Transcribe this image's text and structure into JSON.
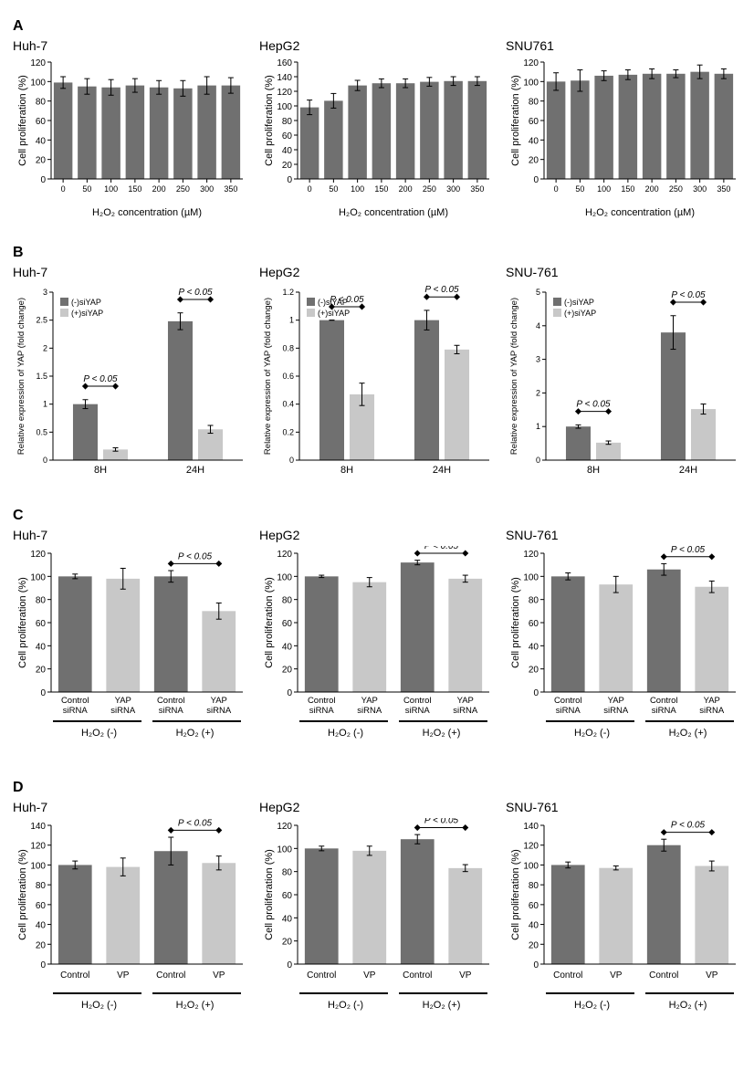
{
  "global": {
    "bar_color_dark": "#707070",
    "bar_color_light": "#c8c8c8",
    "axis_color": "#000000",
    "err_color": "#000000",
    "font_family": "Arial",
    "p_label": "P < 0.05",
    "cell_lines": [
      "Huh-7",
      "HepG2",
      "SNU-761"
    ]
  },
  "panelA": {
    "label": "A",
    "ylabel": "Cell proliferation (%)",
    "xlabel_html": "H₂O₂ concentration (µM)",
    "categories": [
      "0",
      "50",
      "100",
      "150",
      "200",
      "250",
      "300",
      "350"
    ],
    "charts": [
      {
        "title": "Huh-7",
        "ymax": 120,
        "ytick": 20,
        "values": [
          99,
          95,
          94,
          96,
          94,
          93,
          96,
          96
        ],
        "errors": [
          6,
          8,
          8,
          7,
          7,
          8,
          9,
          8
        ]
      },
      {
        "title": "HepG2",
        "ymax": 160,
        "ytick": 20,
        "values": [
          98,
          107,
          128,
          131,
          131,
          133,
          134,
          134
        ],
        "errors": [
          10,
          10,
          7,
          6,
          6,
          6,
          6,
          6
        ]
      },
      {
        "title": "SNU761",
        "ymax": 120,
        "ytick": 20,
        "values": [
          100,
          101,
          106,
          107,
          108,
          108,
          110,
          108
        ],
        "errors": [
          9,
          11,
          5,
          5,
          5,
          4,
          7,
          5
        ]
      }
    ]
  },
  "panelB": {
    "label": "B",
    "ylabel": "Relative expression of YAP (fold change)",
    "categories": [
      "8H",
      "24H"
    ],
    "legend": [
      "(-)siYAP",
      "(+)siYAP"
    ],
    "charts": [
      {
        "title": "Huh-7",
        "ymax": 3.0,
        "ytick": 0.5,
        "dark": [
          1.0,
          2.48
        ],
        "light": [
          0.19,
          0.55
        ],
        "derr": [
          0.08,
          0.15
        ],
        "lerr": [
          0.03,
          0.07
        ],
        "p": [
          1,
          1
        ]
      },
      {
        "title": "HepG2",
        "ymax": 1.2,
        "ytick": 0.2,
        "dark": [
          1.0,
          1.0
        ],
        "light": [
          0.47,
          0.79
        ],
        "derr": [
          0.0,
          0.07
        ],
        "lerr": [
          0.08,
          0.03
        ],
        "p": [
          1,
          1
        ]
      },
      {
        "title": "SNU-761",
        "ymax": 5.0,
        "ytick": 1.0,
        "dark": [
          1.0,
          3.8
        ],
        "light": [
          0.52,
          1.52
        ],
        "derr": [
          0.05,
          0.5
        ],
        "lerr": [
          0.05,
          0.15
        ],
        "p": [
          1,
          1
        ]
      }
    ]
  },
  "panelC": {
    "label": "C",
    "ylabel": "Cell proliferation (%)",
    "group_labels_top": [
      "Control siRNA",
      "YAP siRNA",
      "Control siRNA",
      "YAP siRNA"
    ],
    "group_labels_bottom_html": [
      "H₂O₂ (-)",
      "H₂O₂ (+)"
    ],
    "charts": [
      {
        "title": "Huh-7",
        "ymax": 120,
        "ytick": 20,
        "vals": [
          100,
          98,
          100,
          70
        ],
        "errs": [
          2,
          9,
          5,
          7
        ],
        "p_pair": [
          0,
          1
        ]
      },
      {
        "title": "HepG2",
        "ymax": 120,
        "ytick": 20,
        "vals": [
          100,
          95,
          112,
          98
        ],
        "errs": [
          1,
          4,
          2,
          3
        ],
        "p_pair": [
          0,
          1
        ]
      },
      {
        "title": "SNU-761",
        "ymax": 120,
        "ytick": 20,
        "vals": [
          100,
          93,
          106,
          91
        ],
        "errs": [
          3,
          7,
          5,
          5
        ],
        "p_pair": [
          0,
          1
        ]
      }
    ]
  },
  "panelD": {
    "label": "D",
    "ylabel": "Cell proliferation (%)",
    "group_labels_top": [
      "Control",
      "VP",
      "Control",
      "VP"
    ],
    "group_labels_bottom_html": [
      "H₂O₂ (-)",
      "H₂O₂ (+)"
    ],
    "charts": [
      {
        "title": "Huh-7",
        "ymax": 140,
        "ytick": 20,
        "vals": [
          100,
          98,
          114,
          102
        ],
        "errs": [
          4,
          9,
          14,
          7
        ],
        "p_pair": [
          0,
          1
        ]
      },
      {
        "title": "HepG2",
        "ymax": 120,
        "ytick": 20,
        "vals": [
          100,
          98,
          108,
          83
        ],
        "errs": [
          2,
          4,
          4,
          3
        ],
        "p_pair": [
          0,
          1
        ]
      },
      {
        "title": "SNU-761",
        "ymax": 140,
        "ytick": 20,
        "vals": [
          100,
          97,
          120,
          99
        ],
        "errs": [
          3,
          2,
          6,
          5
        ],
        "p_pair": [
          0,
          1
        ]
      }
    ]
  }
}
